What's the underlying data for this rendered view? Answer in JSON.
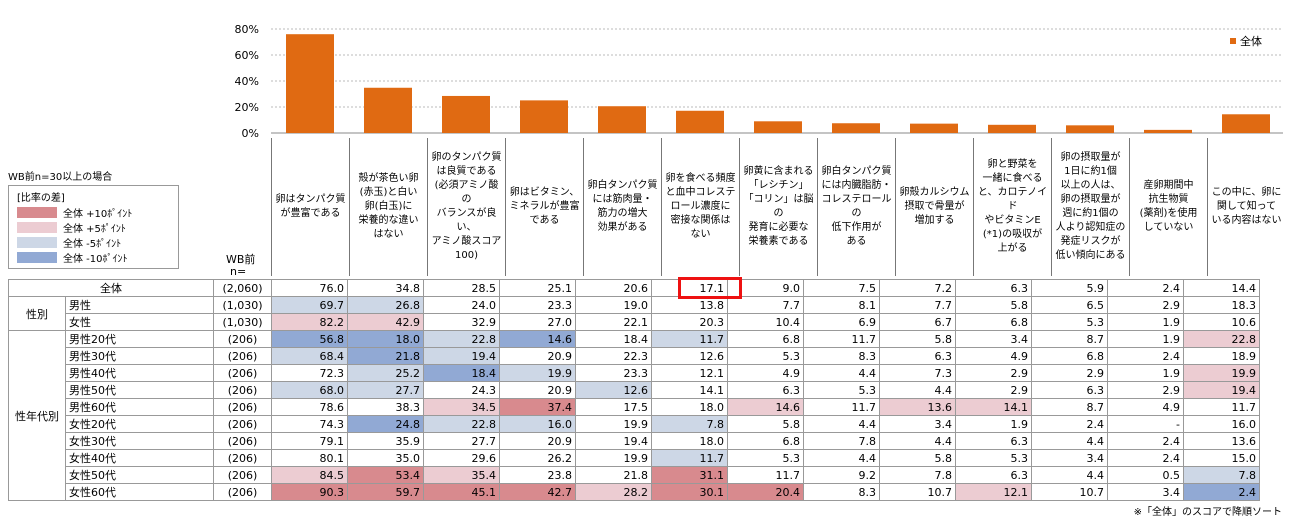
{
  "chart_data": {
    "type": "bar",
    "legend": "全体",
    "legend_position": "top-right",
    "ylim": [
      0,
      80
    ],
    "yticks": [
      "0%",
      "20%",
      "40%",
      "60%",
      "80%"
    ],
    "categories": [
      "卵はタンパク質が豊富である",
      "殻が茶色い卵(赤玉)と白い卵(白玉)に栄養的な違いはない",
      "卵のタンパク質は良質である(必須アミノ酸のバランスが良い、アミノ酸スコア100)",
      "卵はビタミン、ミネラルが豊富である",
      "卵白タンパク質には筋肉量・筋力の増大効果がある",
      "卵を食べる頻度と血中コレステロール濃度に密接な関係はない",
      "卵黄に含まれる「レシチン」「コリン」は脳の発育に必要な栄養素である",
      "卵白タンパク質には内臓脂肪・コレステロールの低下作用がある",
      "卵殻カルシウム摂取で骨量が増加する",
      "卵と野菜を一緒に食べると、カロテノイドやビタミンE(*1)の吸収が上がる",
      "卵の摂取量が1日に約1個以上の人は、卵の摂取量が週に約1個の人より認知症の発症リスクが低い傾向にある",
      "産卵期間中抗生物質(薬剤)を使用していない",
      "この中に、卵に関して知っている内容はない"
    ],
    "headers": [
      [
        "卵はタンパク質",
        "が豊富である"
      ],
      [
        "殻が茶色い卵",
        "(赤玉)と白い",
        "卵(白玉)に",
        "栄養的な違い",
        "はない"
      ],
      [
        "卵のタンパク質",
        "は良質である",
        "(必須アミノ酸の",
        "バランスが良い、",
        "アミノ酸スコア",
        "100)"
      ],
      [
        "卵はビタミン、",
        "ミネラルが豊富",
        "である"
      ],
      [
        "卵白タンパク質",
        "には筋肉量・",
        "筋力の増大",
        "効果がある"
      ],
      [
        "卵を食べる頻度",
        "と血中コレステ",
        "ロール濃度に",
        "密接な関係は",
        "ない"
      ],
      [
        "卵黄に含まれる",
        "「レシチン」",
        "「コリン」は脳の",
        "発育に必要な",
        "栄養素である"
      ],
      [
        "卵白タンパク質",
        "には内臓脂肪・",
        "コレステロールの",
        "低下作用が",
        "ある"
      ],
      [
        "卵殻カルシウム",
        "摂取で骨量が",
        "増加する"
      ],
      [
        "卵と野菜を",
        "一緒に食べる",
        "と、カロテノイド",
        "やビタミンE",
        "(*1)の吸収が",
        "上がる"
      ],
      [
        "卵の摂取量が",
        "1日に約1個",
        "以上の人は、",
        "卵の摂取量が",
        "週に約1個の",
        "人より認知症の",
        "発症リスクが",
        "低い傾向にある"
      ],
      [
        "産卵期間中",
        "抗生物質",
        "(薬剤)を使用",
        "していない"
      ],
      [
        "この中に、卵に",
        "関して知って",
        "いる内容はない"
      ]
    ],
    "values": [
      76.0,
      34.8,
      28.5,
      25.1,
      20.6,
      17.1,
      9.0,
      7.5,
      7.2,
      6.3,
      5.9,
      2.4,
      14.4
    ],
    "colors": {
      "bar": "#e06a12",
      "plus10": "#d88a8e",
      "plus5": "#ecccd2",
      "minus5": "#cdd7e6",
      "minus10": "#91a9d4",
      "grid": "#bbbbbb",
      "highlight": "#ee1111"
    },
    "table": {
      "wb_label": "WB前",
      "n_label": "n=",
      "rows": [
        {
          "group": "",
          "label": "全体",
          "n": "(2,060)",
          "values": [
            "76.0",
            "34.8",
            "28.5",
            "25.1",
            "20.6",
            "17.1",
            "9.0",
            "7.5",
            "7.2",
            "6.3",
            "5.9",
            "2.4",
            "14.4"
          ],
          "shade": [
            "",
            "",
            "",
            "",
            "",
            "",
            "",
            "",
            "",
            "",
            "",
            "",
            ""
          ]
        },
        {
          "group": "性別",
          "label": "男性",
          "n": "(1,030)",
          "values": [
            "69.7",
            "26.8",
            "24.0",
            "23.3",
            "19.0",
            "13.8",
            "7.7",
            "8.1",
            "7.7",
            "5.8",
            "6.5",
            "2.9",
            "18.3"
          ],
          "shade": [
            "m5",
            "m5",
            "",
            "",
            "",
            "",
            "",
            "",
            "",
            "",
            "",
            "",
            ""
          ]
        },
        {
          "group": "",
          "label": "女性",
          "n": "(1,030)",
          "values": [
            "82.2",
            "42.9",
            "32.9",
            "27.0",
            "22.1",
            "20.3",
            "10.4",
            "6.9",
            "6.7",
            "6.8",
            "5.3",
            "1.9",
            "10.6"
          ],
          "shade": [
            "p5",
            "p5",
            "",
            "",
            "",
            "",
            "",
            "",
            "",
            "",
            "",
            "",
            ""
          ]
        },
        {
          "group": "性年代別",
          "label": "男性20代",
          "n": "(206)",
          "values": [
            "56.8",
            "18.0",
            "22.8",
            "14.6",
            "18.4",
            "11.7",
            "6.8",
            "11.7",
            "5.8",
            "3.4",
            "8.7",
            "1.9",
            "22.8"
          ],
          "shade": [
            "m10",
            "m10",
            "m5",
            "m10",
            "",
            "m5",
            "",
            "",
            "",
            "",
            "",
            "",
            "p5"
          ]
        },
        {
          "group": "",
          "label": "男性30代",
          "n": "(206)",
          "values": [
            "68.4",
            "21.8",
            "19.4",
            "20.9",
            "22.3",
            "12.6",
            "5.3",
            "8.3",
            "6.3",
            "4.9",
            "6.8",
            "2.4",
            "18.9"
          ],
          "shade": [
            "m5",
            "m10",
            "m5",
            "",
            "",
            "",
            "",
            "",
            "",
            "",
            "",
            "",
            ""
          ]
        },
        {
          "group": "",
          "label": "男性40代",
          "n": "(206)",
          "values": [
            "72.3",
            "25.2",
            "18.4",
            "19.9",
            "23.3",
            "12.1",
            "4.9",
            "4.4",
            "7.3",
            "2.9",
            "2.9",
            "1.9",
            "19.9"
          ],
          "shade": [
            "",
            "m5",
            "m10",
            "m5",
            "",
            "",
            "",
            "",
            "",
            "",
            "",
            "",
            "p5"
          ]
        },
        {
          "group": "",
          "label": "男性50代",
          "n": "(206)",
          "values": [
            "68.0",
            "27.7",
            "24.3",
            "20.9",
            "12.6",
            "14.1",
            "6.3",
            "5.3",
            "4.4",
            "2.9",
            "6.3",
            "2.9",
            "19.4"
          ],
          "shade": [
            "m5",
            "m5",
            "",
            "",
            "m5",
            "",
            "",
            "",
            "",
            "",
            "",
            "",
            "p5"
          ]
        },
        {
          "group": "",
          "label": "男性60代",
          "n": "(206)",
          "values": [
            "78.6",
            "38.3",
            "34.5",
            "37.4",
            "17.5",
            "18.0",
            "14.6",
            "11.7",
            "13.6",
            "14.1",
            "8.7",
            "4.9",
            "11.7"
          ],
          "shade": [
            "",
            "",
            "p5",
            "p10",
            "",
            "",
            "p5",
            "",
            "p5",
            "p5",
            "",
            "",
            ""
          ]
        },
        {
          "group": "",
          "label": "女性20代",
          "n": "(206)",
          "values": [
            "74.3",
            "24.8",
            "22.8",
            "16.0",
            "19.9",
            "7.8",
            "5.8",
            "4.4",
            "3.4",
            "1.9",
            "2.4",
            "-",
            "16.0"
          ],
          "shade": [
            "",
            "m10",
            "m5",
            "m5",
            "",
            "m5",
            "",
            "",
            "",
            "",
            "",
            "",
            ""
          ]
        },
        {
          "group": "",
          "label": "女性30代",
          "n": "(206)",
          "values": [
            "79.1",
            "35.9",
            "27.7",
            "20.9",
            "19.4",
            "18.0",
            "6.8",
            "7.8",
            "4.4",
            "6.3",
            "4.4",
            "2.4",
            "13.6"
          ],
          "shade": [
            "",
            "",
            "",
            "",
            "",
            "",
            "",
            "",
            "",
            "",
            "",
            "",
            ""
          ]
        },
        {
          "group": "",
          "label": "女性40代",
          "n": "(206)",
          "values": [
            "80.1",
            "35.0",
            "29.6",
            "26.2",
            "19.9",
            "11.7",
            "5.3",
            "4.4",
            "5.8",
            "5.3",
            "3.4",
            "2.4",
            "15.0"
          ],
          "shade": [
            "",
            "",
            "",
            "",
            "",
            "m5",
            "",
            "",
            "",
            "",
            "",
            "",
            ""
          ]
        },
        {
          "group": "",
          "label": "女性50代",
          "n": "(206)",
          "values": [
            "84.5",
            "53.4",
            "35.4",
            "23.8",
            "21.8",
            "31.1",
            "11.7",
            "9.2",
            "7.8",
            "6.3",
            "4.4",
            "0.5",
            "7.8"
          ],
          "shade": [
            "p5",
            "p10",
            "p5",
            "",
            "",
            "p10",
            "",
            "",
            "",
            "",
            "",
            "",
            "m5"
          ]
        },
        {
          "group": "",
          "label": "女性60代",
          "n": "(206)",
          "values": [
            "90.3",
            "59.7",
            "45.1",
            "42.7",
            "28.2",
            "30.1",
            "20.4",
            "8.3",
            "10.7",
            "12.1",
            "10.7",
            "3.4",
            "2.4"
          ],
          "shade": [
            "p10",
            "p10",
            "p10",
            "p10",
            "p5",
            "p10",
            "p10",
            "",
            "",
            "p5",
            "",
            "",
            "m10"
          ]
        }
      ]
    }
  },
  "legend_box": {
    "condition": "WB前n=30以上の場合",
    "title": "[比率の差]",
    "items": [
      {
        "key": "plus10",
        "label": "全体 +10ﾎﾟｲﾝﾄ"
      },
      {
        "key": "plus5",
        "label": "全体 +5ﾎﾟｲﾝﾄ"
      },
      {
        "key": "minus5",
        "label": "全体 -5ﾎﾟｲﾝﾄ"
      },
      {
        "key": "minus10",
        "label": "全体 -10ﾎﾟｲﾝﾄ"
      }
    ]
  },
  "footnote": "※「全体」のスコアで降順ソート"
}
